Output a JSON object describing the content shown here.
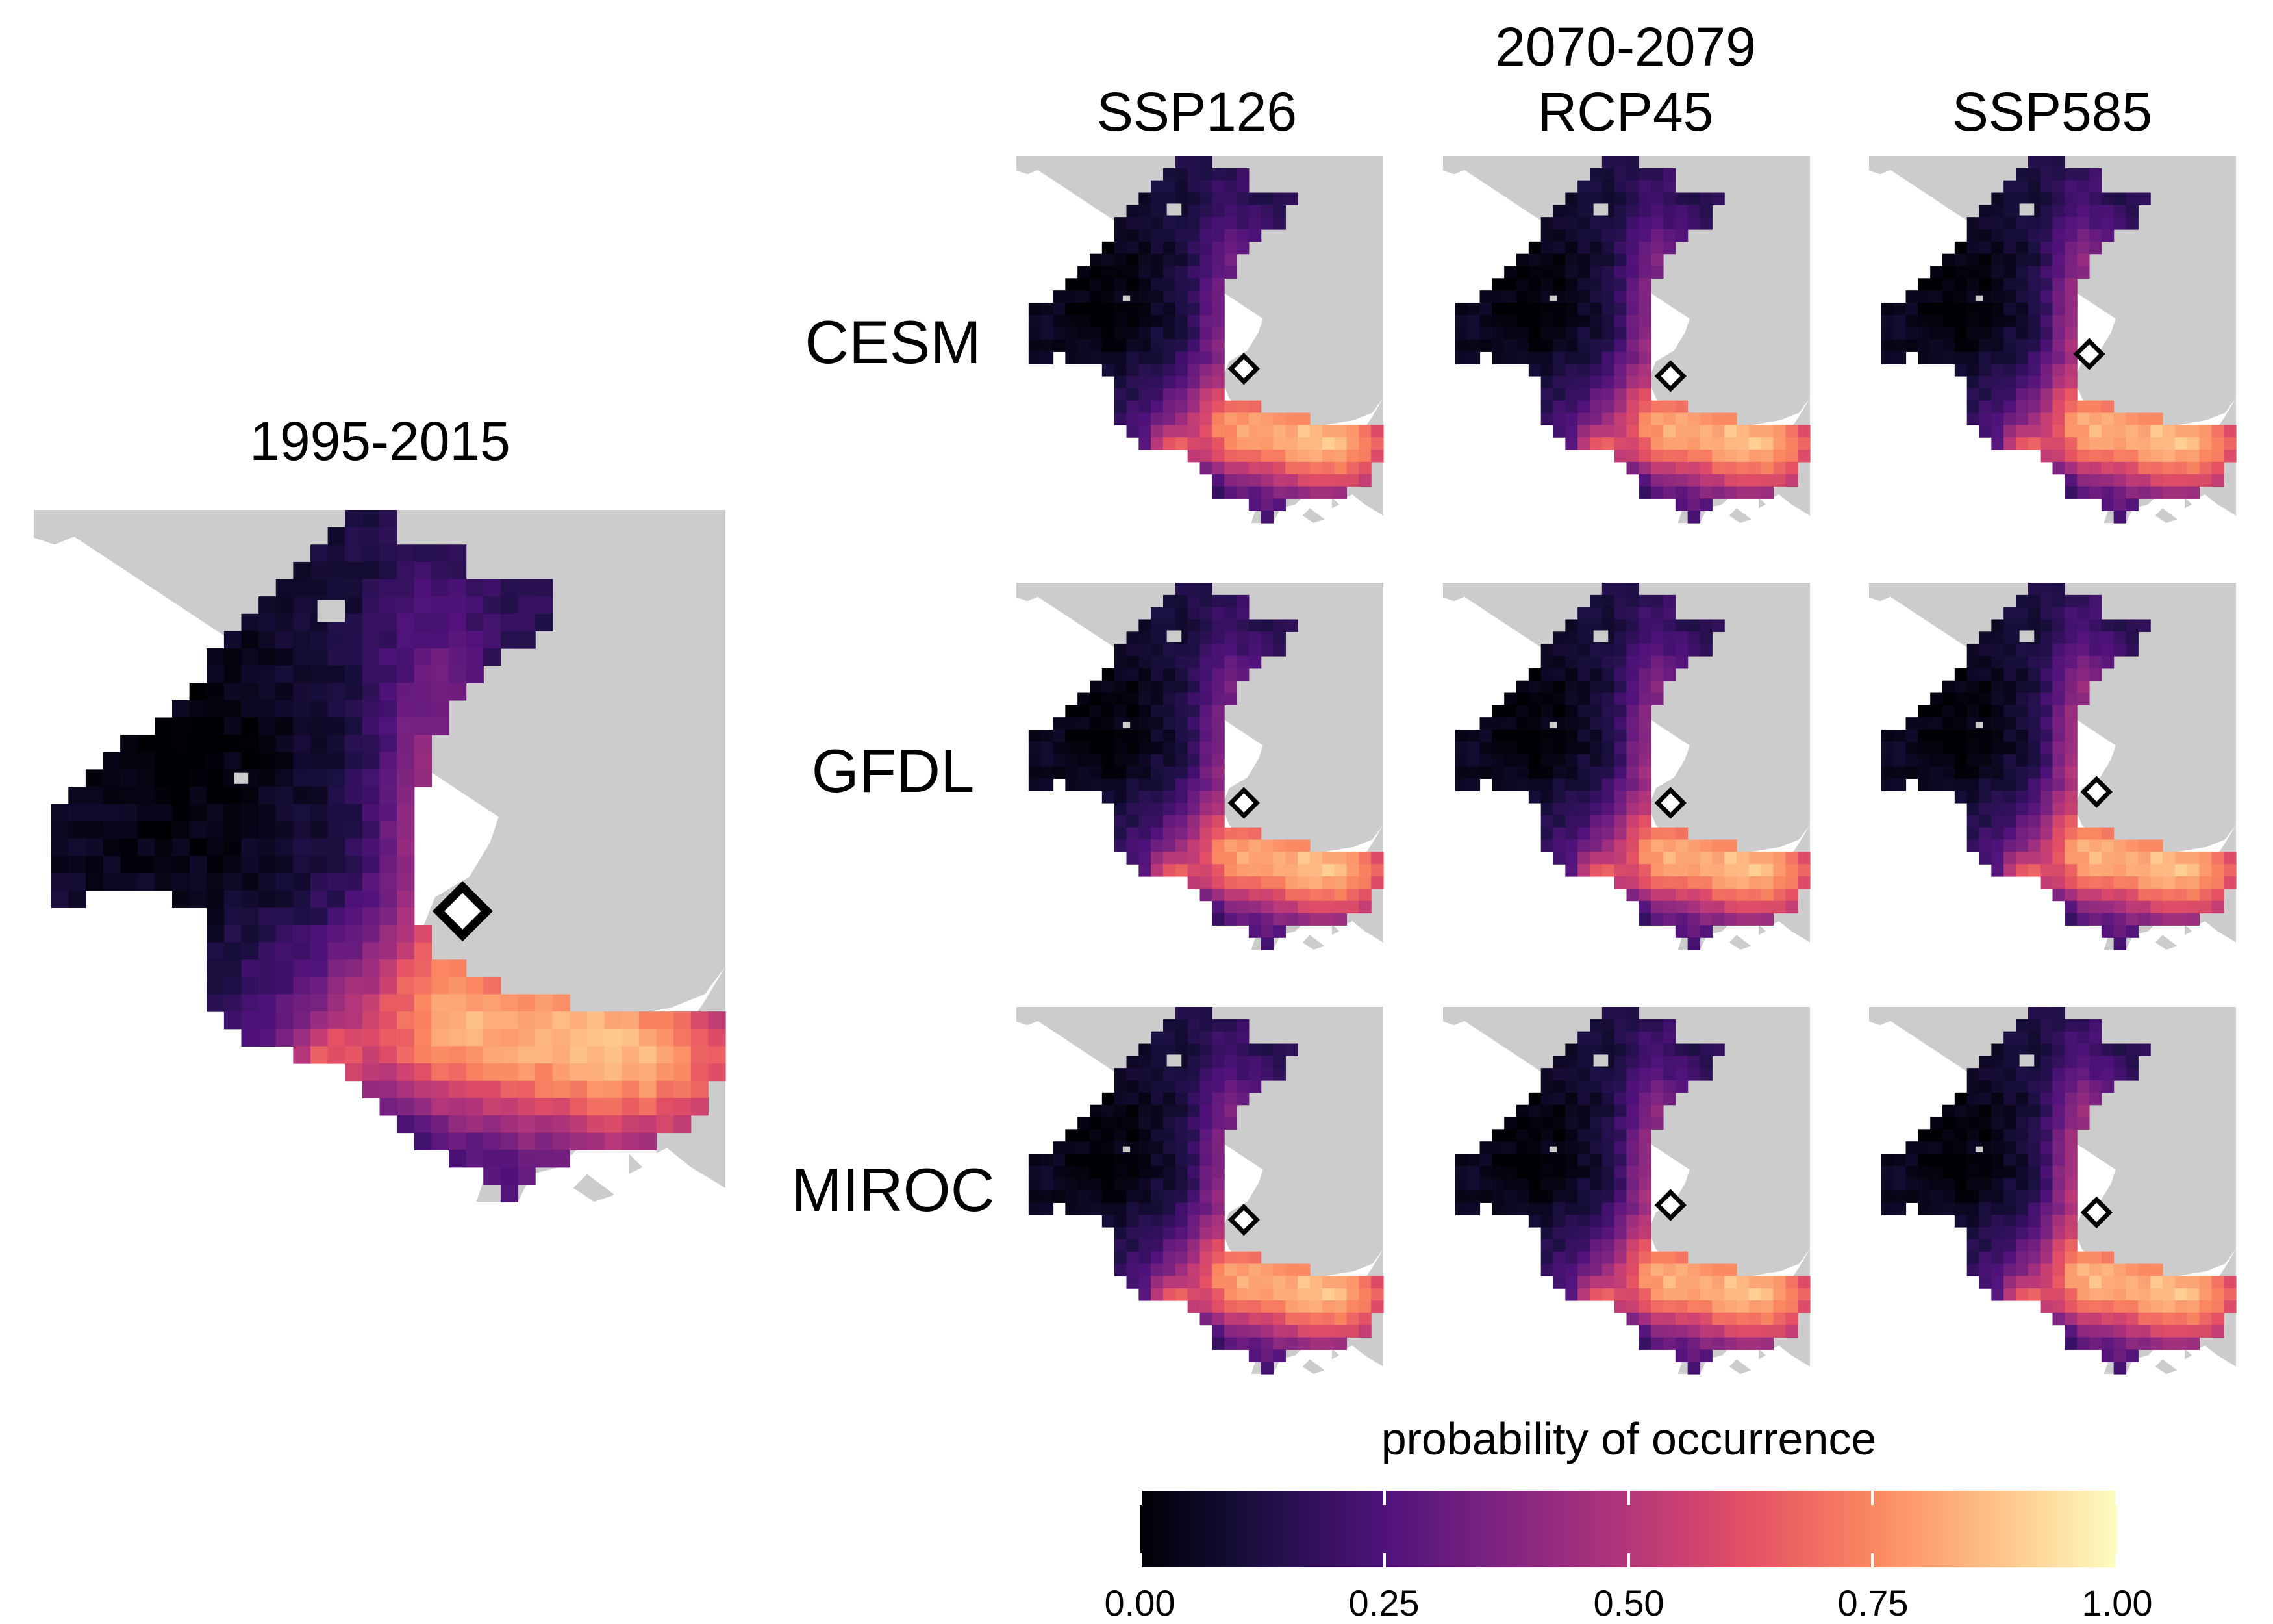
{
  "baseline": {
    "title": "1995-2015"
  },
  "projection": {
    "period": "2070-2079"
  },
  "columns": [
    "SSP126",
    "RCP45",
    "SSP585"
  ],
  "rows": [
    "CESM",
    "GFDL",
    "MIROC"
  ],
  "legend": {
    "title": "probability of occurrence",
    "ticks": [
      "0.00",
      "0.25",
      "0.50",
      "0.75",
      "1.00"
    ],
    "min": 0.0,
    "max": 1.0
  },
  "palette": [
    "#000004",
    "#1c1044",
    "#4f127b",
    "#812581",
    "#b5367a",
    "#e55064",
    "#fb8761",
    "#fec287",
    "#fcfdbf"
  ],
  "colors": {
    "land": "#cccccc",
    "ocean": "#ffffff",
    "station_marker_fill": "#ffffff",
    "station_marker_stroke": "#000000"
  }
}
